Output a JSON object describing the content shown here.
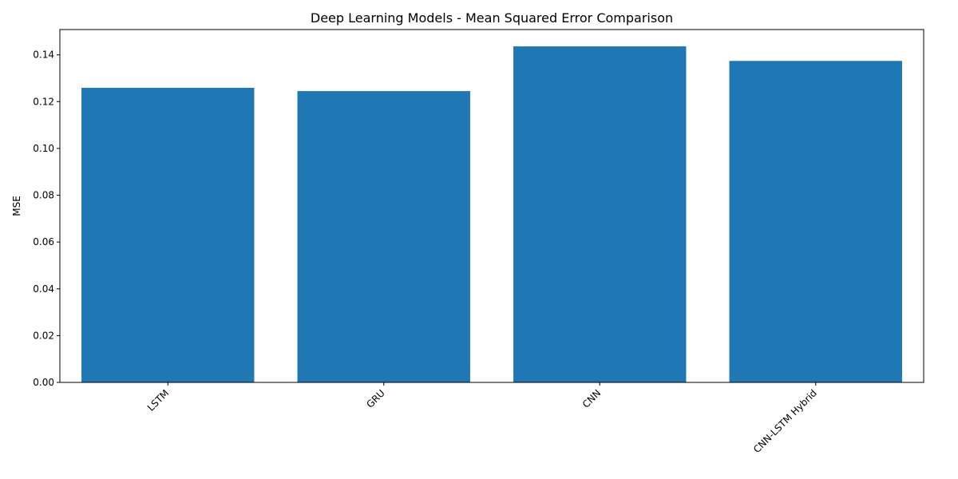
{
  "chart_data": {
    "type": "bar",
    "title": "Deep Learning Models - Mean Squared Error Comparison",
    "xlabel": "",
    "ylabel": "MSE",
    "categories": [
      "LSTM",
      "GRU",
      "CNN",
      "CNN-LSTM Hybrid"
    ],
    "values": [
      0.1259,
      0.1245,
      0.1436,
      0.1374
    ],
    "ylim": [
      0,
      0.1508
    ],
    "yticks": [
      0.0,
      0.02,
      0.04,
      0.06,
      0.08,
      0.1,
      0.12,
      0.14
    ],
    "ytick_labels": [
      "0.00",
      "0.02",
      "0.04",
      "0.06",
      "0.08",
      "0.10",
      "0.12",
      "0.14"
    ],
    "bar_color": "#1f77b4",
    "grid": false,
    "legend": "none"
  }
}
